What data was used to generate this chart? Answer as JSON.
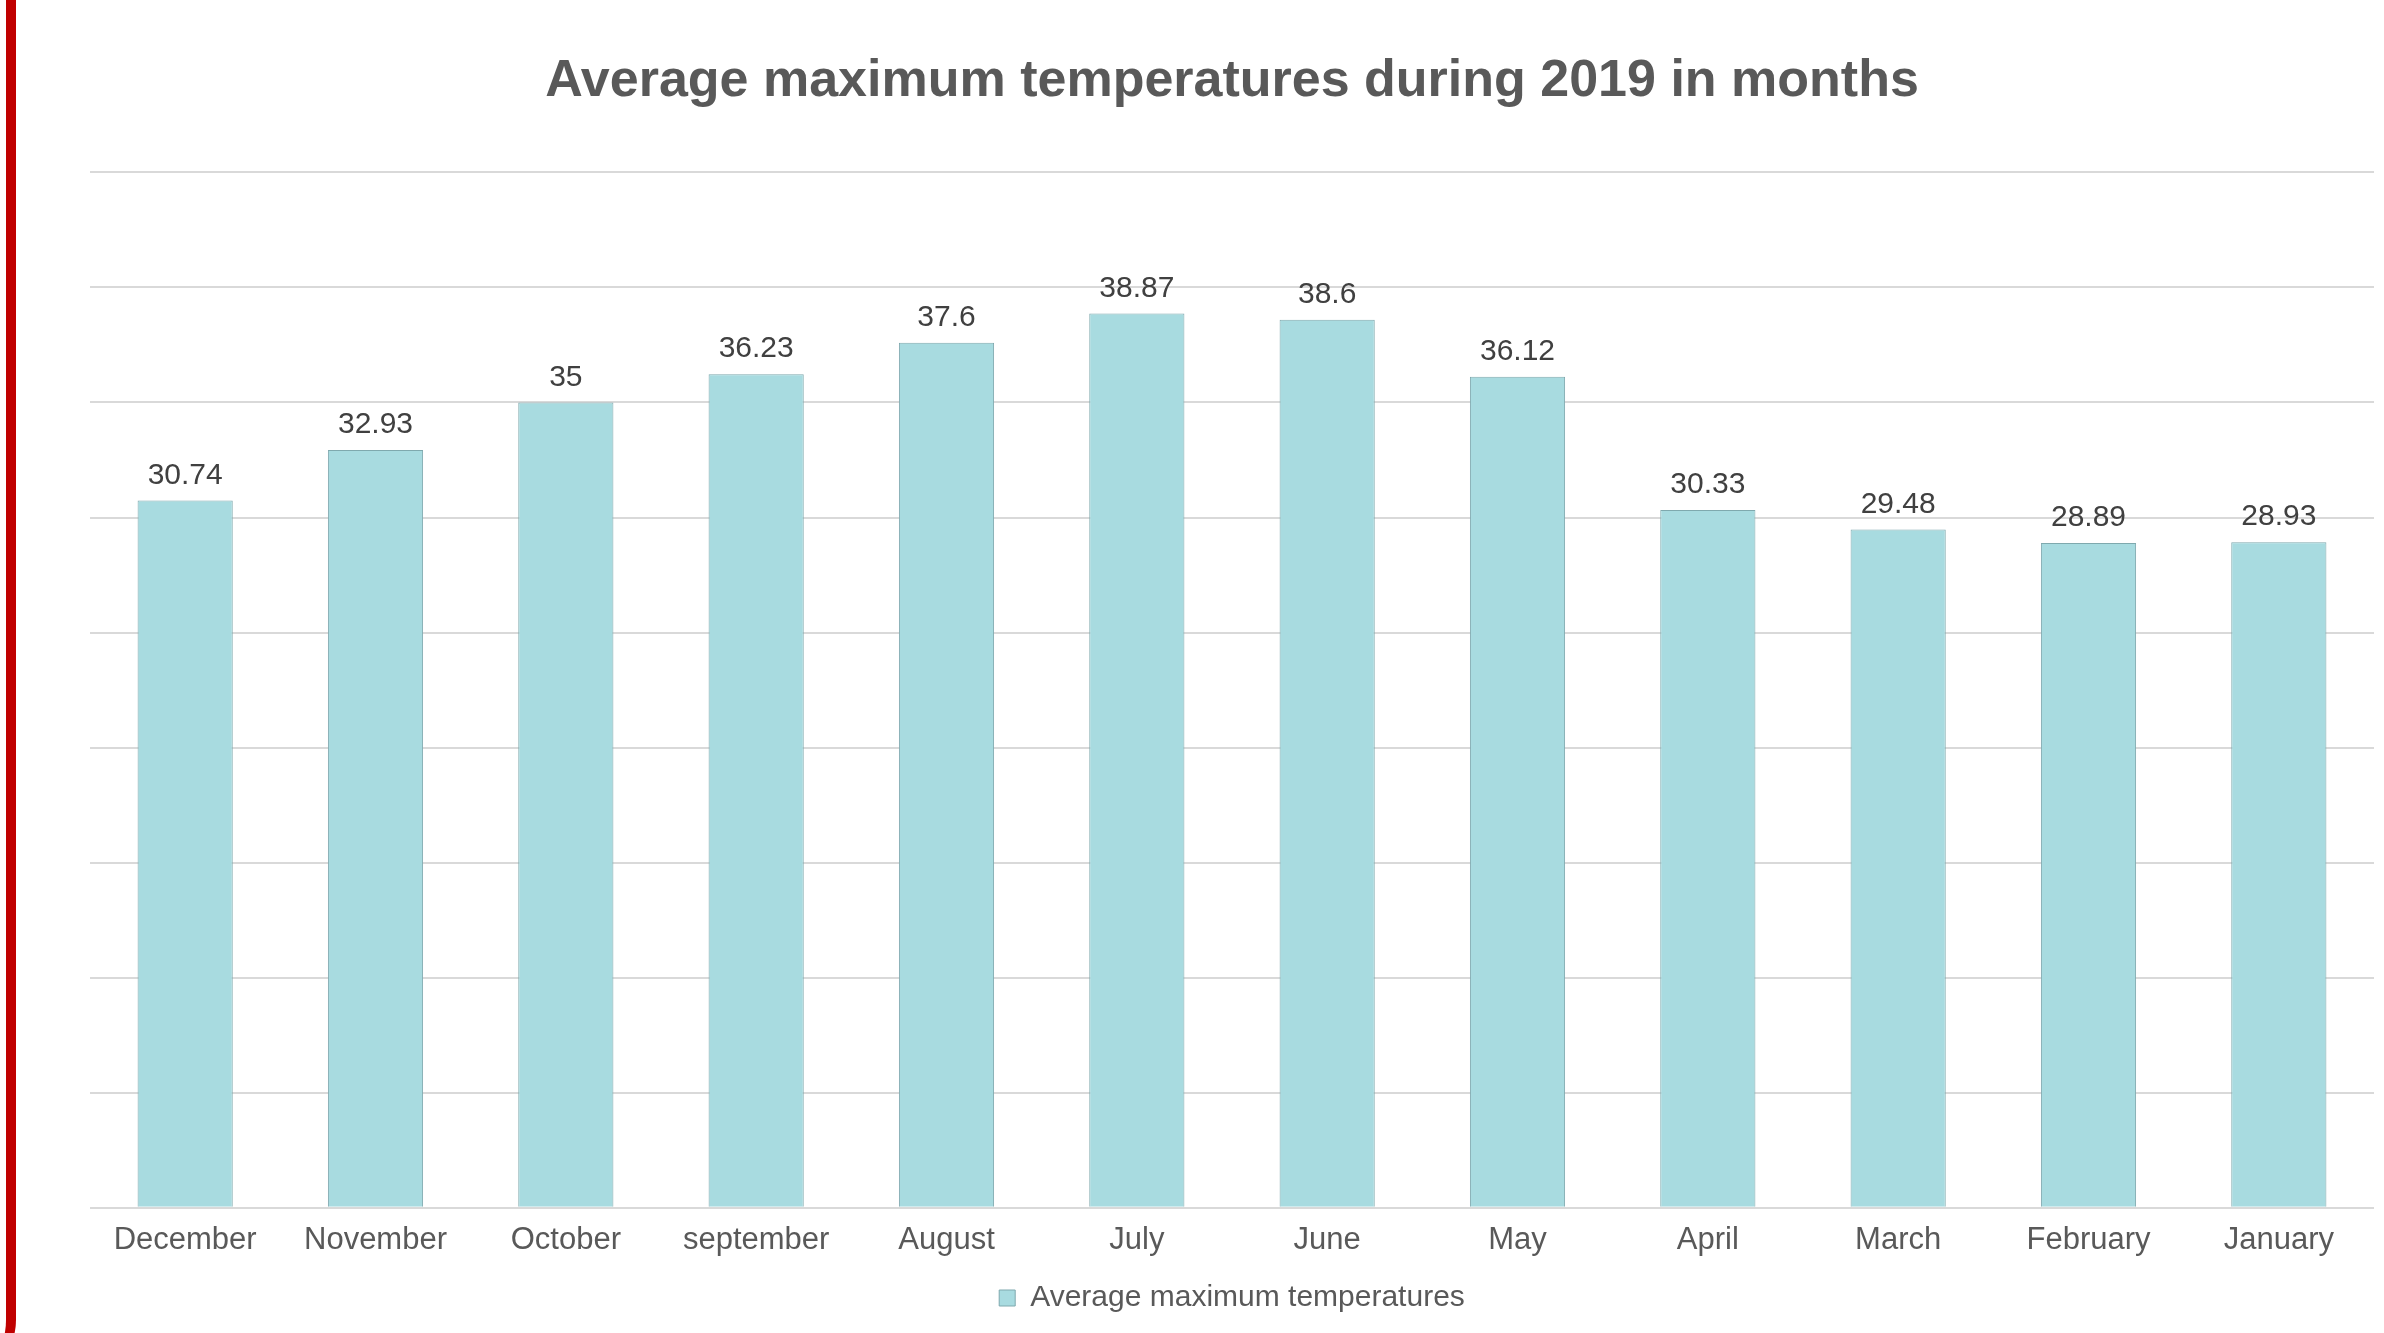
{
  "chart_data": {
    "type": "bar",
    "title": "Average maximum temperatures during 2019 in months",
    "categories": [
      "December",
      "November",
      "October",
      "september",
      "August",
      "July",
      "June",
      "May",
      "April",
      "March",
      "February",
      "January"
    ],
    "series": [
      {
        "name": "Average maximum temperatures",
        "color": "#a8dbe0",
        "values": [
          30.74,
          32.93,
          35,
          36.23,
          37.6,
          38.87,
          38.6,
          36.12,
          30.33,
          29.48,
          28.89,
          28.93
        ]
      }
    ],
    "ylim": [
      0,
      45
    ],
    "yticks": [
      {
        "value": 0,
        "label": null
      },
      {
        "value": 5,
        "label": null
      },
      {
        "value": 10,
        "label": null
      },
      {
        "value": 15,
        "label": null
      },
      {
        "value": 20,
        "label": null
      },
      {
        "value": 25,
        "label": null
      },
      {
        "value": 30,
        "label": null
      },
      {
        "value": 35,
        "label": null
      },
      {
        "value": 40,
        "label": null
      },
      {
        "value": 45,
        "label": null
      }
    ],
    "grid": "y",
    "tick_labels": "x",
    "data_labels": true,
    "legend": "bottom"
  }
}
